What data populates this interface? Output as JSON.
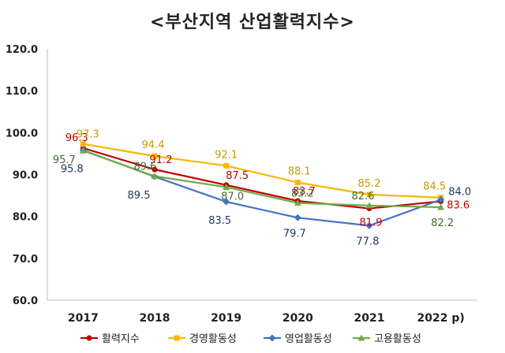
{
  "chart_data": {
    "type": "line",
    "title": "<부산지역 산업활력지수>",
    "categories": [
      "2017",
      "2018",
      "2019",
      "2020",
      "2021",
      "2022 p)"
    ],
    "ylim": [
      60,
      120
    ],
    "yticks": [
      "60.0",
      "70.0",
      "80.0",
      "90.0",
      "100.0",
      "110.0",
      "120.0"
    ],
    "ytick_values": [
      60,
      70,
      80,
      90,
      100,
      110,
      120
    ],
    "grid": false,
    "legend_position": "bottom",
    "series": [
      {
        "name": "활력지수",
        "color": "#c00000",
        "marker": "circle",
        "values": [
          96.3,
          91.2,
          87.5,
          83.7,
          81.9,
          83.6
        ],
        "labels": [
          "96.3",
          "91.2",
          "87.5",
          "83.7",
          "81.9",
          "83.6"
        ]
      },
      {
        "name": "경영활동성",
        "color": "#f5b800",
        "marker": "square",
        "values": [
          97.3,
          94.4,
          92.1,
          88.1,
          85.2,
          84.5
        ],
        "labels": [
          "97.3",
          "94.4",
          "92.1",
          "88.1",
          "85.2",
          "84.5"
        ]
      },
      {
        "name": "영업활동성",
        "color": "#4472c4",
        "marker": "diamond",
        "values": [
          95.8,
          89.5,
          83.5,
          79.7,
          77.8,
          84.0
        ],
        "labels": [
          "95.8",
          "89.5",
          "83.5",
          "79.7",
          "77.8",
          "84.0"
        ]
      },
      {
        "name": "고용활동성",
        "color": "#70ad47",
        "marker": "triangle",
        "values": [
          95.7,
          89.6,
          87.0,
          83.2,
          82.6,
          82.2
        ],
        "labels": [
          "95.7",
          "89.6",
          "87.0",
          "83.2",
          "82.6",
          "82.2"
        ]
      }
    ]
  }
}
